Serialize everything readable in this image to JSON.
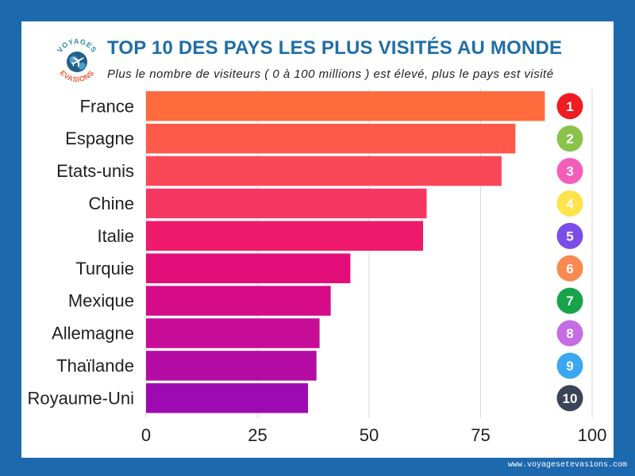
{
  "logo": {
    "top_text": "VOYAGES",
    "bottom_text": "EVASIONS"
  },
  "chart_data": {
    "type": "bar",
    "orientation": "horizontal",
    "title": "TOP 10 DES PAYS LES PLUS VISITÉS AU MONDE",
    "subtitle": "Plus le nombre de visiteurs ( 0 à 100 millions ) est élevé, plus le pays est visité",
    "categories": [
      "France",
      "Espagne",
      "Etats-unis",
      "Chine",
      "Italie",
      "Turquie",
      "Mexique",
      "Allemagne",
      "Thaïlande",
      "Royaume-Uni"
    ],
    "values": [
      89.4,
      82.8,
      79.7,
      62.9,
      62.1,
      45.8,
      41.4,
      38.9,
      38.2,
      36.3
    ],
    "xlim": [
      0,
      100
    ],
    "xticks": [
      "0",
      "25",
      "50",
      "75",
      "100"
    ],
    "grid": "vertical",
    "legend": "none",
    "ranks": [
      "1",
      "2",
      "3",
      "4",
      "5",
      "6",
      "7",
      "8",
      "9",
      "10"
    ],
    "bar_colors": [
      "#fe6c3e",
      "#fe5a4b",
      "#fb4858",
      "#f53660",
      "#ef1a6b",
      "#e30d7a",
      "#d60b88",
      "#c70c97",
      "#b40ba4",
      "#9d0ab1"
    ],
    "rank_colors": [
      "#ee1d23",
      "#8bc34a",
      "#f35fb8",
      "#fde34c",
      "#7b4de8",
      "#fa8a50",
      "#17a34a",
      "#c56ce3",
      "#3aa8f0",
      "#3a4456"
    ]
  },
  "colors": {
    "frame": "#1c69ae",
    "card": "#ffffff",
    "title": "#1f6ea7",
    "text": "#1f1f1f",
    "grid": "#d9d9d9",
    "rank_text": "#ffffff",
    "logo_top": "#2b8ca6",
    "logo_bottom": "#ef5a3a",
    "globe": "#245f8c"
  },
  "footer": {
    "url": "www.voyagesetevasions.com"
  }
}
